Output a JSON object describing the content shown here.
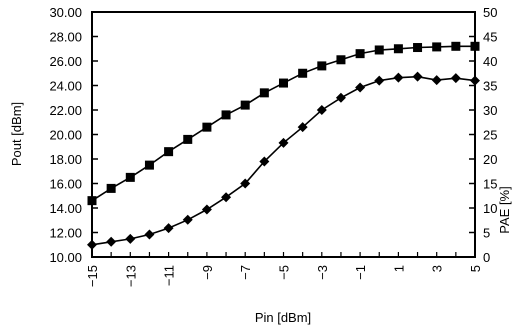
{
  "chart_data": {
    "type": "line",
    "xlabel": "Pin [dBm]",
    "ylabel": "Pout [dBm]",
    "ylabel_right": "PAE [%]",
    "xlim": [
      -15,
      5
    ],
    "ylim": [
      10,
      30
    ],
    "ylim_right": [
      0,
      50
    ],
    "x_ticks": [
      "-15",
      "-13",
      "-11",
      "-9",
      "-7",
      "-5",
      "-3",
      "-1",
      "1",
      "3",
      "5"
    ],
    "y_ticks": [
      "10.00",
      "12.00",
      "14.00",
      "16.00",
      "18.00",
      "20.00",
      "22.00",
      "24.00",
      "26.00",
      "28.00",
      "30.00"
    ],
    "y_ticks_right": [
      "0",
      "5",
      "10",
      "15",
      "20",
      "25",
      "30",
      "35",
      "40",
      "45",
      "50"
    ],
    "grid": false,
    "legend": "none",
    "series": [
      {
        "axis": "left",
        "marker": "square",
        "x": [
          -15,
          -14,
          -13,
          -12,
          -11,
          -10,
          -9,
          -8,
          -7,
          -6,
          -5,
          -4,
          -3,
          -2,
          -1,
          0,
          1,
          2,
          3,
          4,
          5
        ],
        "y": [
          14.6,
          15.6,
          16.5,
          17.5,
          18.6,
          19.6,
          20.6,
          21.6,
          22.4,
          23.4,
          24.2,
          25.0,
          25.6,
          26.1,
          26.6,
          26.9,
          27.0,
          27.1,
          27.15,
          27.2,
          27.2
        ]
      },
      {
        "axis": "right",
        "marker": "diamond",
        "x": [
          -15,
          -14,
          -13,
          -12,
          -11,
          -10,
          -9,
          -8,
          -7,
          -6,
          -5,
          -4,
          -3,
          -2,
          -1,
          0,
          1,
          2,
          3,
          4,
          5
        ],
        "y": [
          2.5,
          3.1,
          3.7,
          4.6,
          5.9,
          7.6,
          9.7,
          12.2,
          15.0,
          19.5,
          23.3,
          26.5,
          30.0,
          32.5,
          34.6,
          36.0,
          36.6,
          36.8,
          36.1,
          36.5,
          36.0
        ]
      }
    ]
  }
}
